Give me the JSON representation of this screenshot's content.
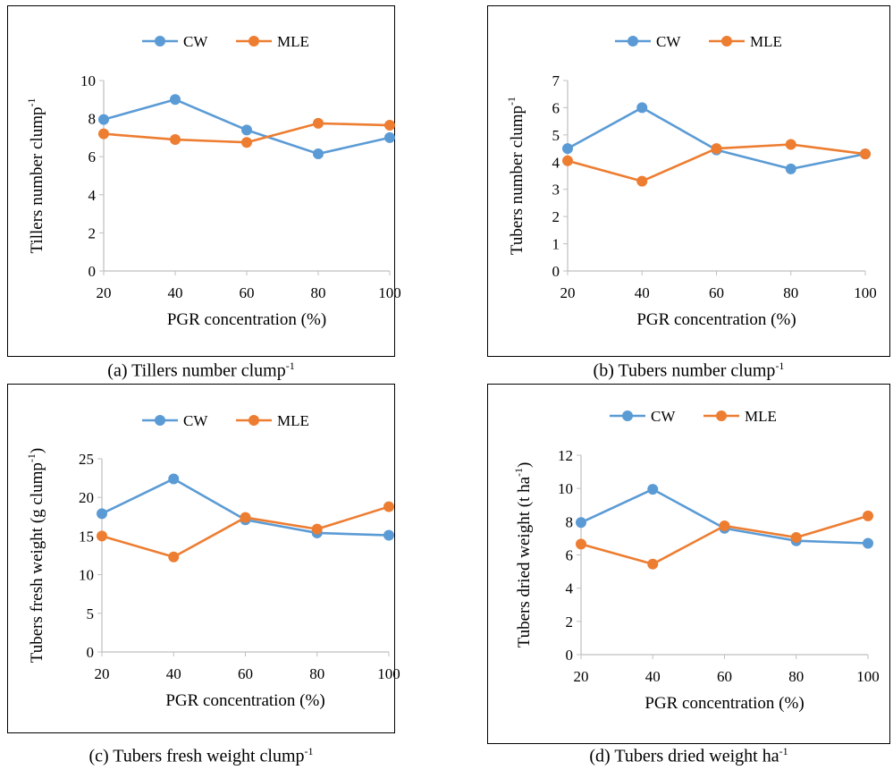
{
  "colors": {
    "cw": "#5B9BD5",
    "mle": "#ED7D31",
    "axis": "#BFBFBF"
  },
  "captions": [
    {
      "text": "(a) Tillers number clump",
      "sup": "-1"
    },
    {
      "text": "(b) Tubers number clump",
      "sup": "-1"
    },
    {
      "text": "(c) Tubers fresh weight clump",
      "sup": "-1"
    },
    {
      "text": "(d) Tubers dried weight ha",
      "sup": "-1"
    }
  ],
  "chart_data": [
    {
      "type": "line",
      "x": [
        20,
        40,
        60,
        80,
        100
      ],
      "xlabel": "PGR concentration (%)",
      "ylabel": "Tillers number clump",
      "ylabel_sup": "-1",
      "ylabel_tail": "",
      "ylim": [
        0,
        10
      ],
      "yticks": [
        0,
        2,
        4,
        6,
        8,
        10
      ],
      "legend": "top",
      "series": [
        {
          "name": "CW",
          "values": [
            7.95,
            9.0,
            7.4,
            6.15,
            7.0
          ]
        },
        {
          "name": "MLE",
          "values": [
            7.2,
            6.9,
            6.75,
            7.75,
            7.65
          ]
        }
      ]
    },
    {
      "type": "line",
      "x": [
        20,
        40,
        60,
        80,
        100
      ],
      "xlabel": "PGR concentration (%)",
      "ylabel": "Tubers number clump",
      "ylabel_sup": "-1",
      "ylabel_tail": "",
      "ylim": [
        0,
        7
      ],
      "yticks": [
        0,
        1,
        2,
        3,
        4,
        5,
        6,
        7
      ],
      "legend": "top",
      "series": [
        {
          "name": "CW",
          "values": [
            4.5,
            6.0,
            4.45,
            3.75,
            4.3
          ]
        },
        {
          "name": "MLE",
          "values": [
            4.05,
            3.3,
            4.5,
            4.65,
            4.3
          ]
        }
      ]
    },
    {
      "type": "line",
      "x": [
        20,
        40,
        60,
        80,
        100
      ],
      "xlabel": "PGR concentration (%)",
      "ylabel": "Tubers fresh weight (g clump",
      "ylabel_sup": "-1",
      "ylabel_tail": ")",
      "ylim": [
        0,
        25
      ],
      "yticks": [
        0,
        5,
        10,
        15,
        20,
        25
      ],
      "legend": "top",
      "series": [
        {
          "name": "CW",
          "values": [
            17.9,
            22.4,
            17.1,
            15.4,
            15.1
          ]
        },
        {
          "name": "MLE",
          "values": [
            15.0,
            12.3,
            17.4,
            15.9,
            18.8
          ]
        }
      ]
    },
    {
      "type": "line",
      "x": [
        20,
        40,
        60,
        80,
        100
      ],
      "xlabel": "PGR concentration (%)",
      "ylabel": "Tubers dried weight (t ha",
      "ylabel_sup": "-1",
      "ylabel_tail": ")",
      "ylim": [
        0,
        12
      ],
      "yticks": [
        0,
        2,
        4,
        6,
        8,
        10,
        12
      ],
      "legend": "top",
      "series": [
        {
          "name": "CW",
          "values": [
            7.95,
            9.95,
            7.6,
            6.85,
            6.7
          ]
        },
        {
          "name": "MLE",
          "values": [
            6.65,
            5.45,
            7.75,
            7.05,
            8.35
          ]
        }
      ]
    }
  ]
}
